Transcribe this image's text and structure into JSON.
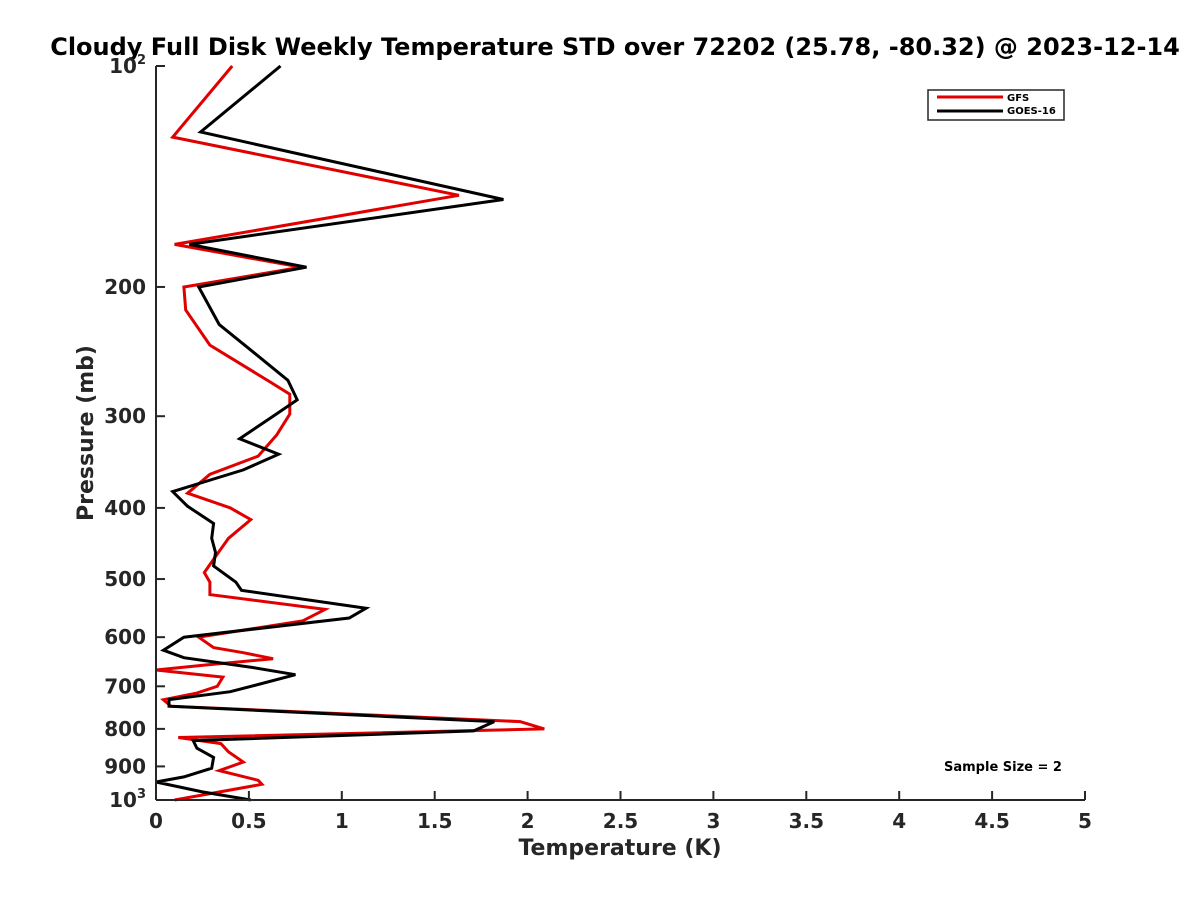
{
  "chart_data": {
    "type": "line",
    "title": "Cloudy Full Disk Weekly Temperature STD over 72202 (25.78, -80.32) @ 2023-12-14",
    "xlabel": "Temperature (K)",
    "ylabel": "Pressure (mb)",
    "xlim": [
      0,
      5
    ],
    "ylim": [
      100,
      1000
    ],
    "yscale": "log",
    "y_reversed": true,
    "x_ticks": [
      "0",
      "0.5",
      "1",
      "1.5",
      "2",
      "2.5",
      "3",
      "3.5",
      "4",
      "4.5",
      "5"
    ],
    "y_ticks": [
      {
        "value": 100,
        "label": "10",
        "sup": "2"
      },
      {
        "value": 200,
        "label": "200"
      },
      {
        "value": 300,
        "label": "300"
      },
      {
        "value": 400,
        "label": "400"
      },
      {
        "value": 500,
        "label": "500"
      },
      {
        "value": 600,
        "label": "600"
      },
      {
        "value": 700,
        "label": "700"
      },
      {
        "value": 800,
        "label": "800"
      },
      {
        "value": 900,
        "label": "900"
      },
      {
        "value": 1000,
        "label": "10",
        "sup": "3"
      }
    ],
    "grid": false,
    "legend_position": "top-right",
    "annotation": "Sample Size = 2",
    "series": [
      {
        "name": "GFS",
        "color": "#e00000",
        "points": [
          [
            0.41,
            100
          ],
          [
            0.09,
            125
          ],
          [
            1.63,
            150
          ],
          [
            0.1,
            175
          ],
          [
            0.78,
            188
          ],
          [
            0.15,
            200
          ],
          [
            0.16,
            215
          ],
          [
            0.29,
            240
          ],
          [
            0.62,
            270
          ],
          [
            0.72,
            280
          ],
          [
            0.72,
            298
          ],
          [
            0.65,
            318
          ],
          [
            0.55,
            340
          ],
          [
            0.29,
            360
          ],
          [
            0.17,
            382
          ],
          [
            0.4,
            400
          ],
          [
            0.51,
            415
          ],
          [
            0.39,
            440
          ],
          [
            0.31,
            470
          ],
          [
            0.26,
            490
          ],
          [
            0.29,
            505
          ],
          [
            0.29,
            525
          ],
          [
            0.91,
            550
          ],
          [
            0.79,
            570
          ],
          [
            0.23,
            600
          ],
          [
            0.31,
            620
          ],
          [
            0.47,
            630
          ],
          [
            0.63,
            642
          ],
          [
            0.26,
            655
          ],
          [
            0.0,
            665
          ],
          [
            0.36,
            680
          ],
          [
            0.33,
            700
          ],
          [
            0.22,
            715
          ],
          [
            0.04,
            730
          ],
          [
            0.08,
            745
          ],
          [
            1.96,
            782
          ],
          [
            2.09,
            800
          ],
          [
            0.12,
            822
          ],
          [
            0.35,
            838
          ],
          [
            0.39,
            860
          ],
          [
            0.47,
            888
          ],
          [
            0.34,
            912
          ],
          [
            0.55,
            940
          ],
          [
            0.57,
            952
          ],
          [
            0.1,
            1000
          ]
        ]
      },
      {
        "name": "GOES-16",
        "color": "#000000",
        "points": [
          [
            0.67,
            100
          ],
          [
            0.24,
            123
          ],
          [
            1.87,
            152
          ],
          [
            0.18,
            175
          ],
          [
            0.81,
            188
          ],
          [
            0.23,
            200
          ],
          [
            0.34,
            225
          ],
          [
            0.52,
            245
          ],
          [
            0.71,
            268
          ],
          [
            0.76,
            285
          ],
          [
            0.63,
            300
          ],
          [
            0.45,
            322
          ],
          [
            0.66,
            338
          ],
          [
            0.47,
            355
          ],
          [
            0.09,
            380
          ],
          [
            0.17,
            398
          ],
          [
            0.31,
            420
          ],
          [
            0.3,
            440
          ],
          [
            0.32,
            460
          ],
          [
            0.31,
            480
          ],
          [
            0.43,
            505
          ],
          [
            0.46,
            518
          ],
          [
            1.13,
            548
          ],
          [
            1.04,
            565
          ],
          [
            0.15,
            600
          ],
          [
            0.04,
            625
          ],
          [
            0.15,
            640
          ],
          [
            0.52,
            660
          ],
          [
            0.75,
            675
          ],
          [
            0.56,
            695
          ],
          [
            0.4,
            712
          ],
          [
            0.07,
            730
          ],
          [
            0.07,
            745
          ],
          [
            1.82,
            782
          ],
          [
            1.71,
            805
          ],
          [
            0.2,
            830
          ],
          [
            0.22,
            850
          ],
          [
            0.31,
            875
          ],
          [
            0.3,
            905
          ],
          [
            0.15,
            930
          ],
          [
            0.0,
            945
          ],
          [
            0.25,
            975
          ],
          [
            0.51,
            1000
          ]
        ]
      }
    ]
  }
}
